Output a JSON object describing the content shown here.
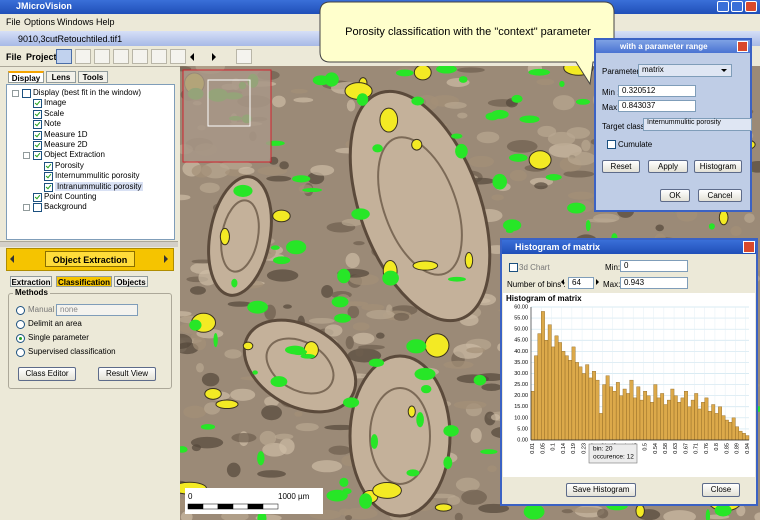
{
  "app": {
    "title": "JMicroVision",
    "menu": [
      "File",
      "Options",
      "Windows",
      "Help"
    ]
  },
  "document": {
    "title": "9010,3cutRetouchtiled.tif1",
    "menu": [
      "File",
      "Project"
    ]
  },
  "left_panel": {
    "tabs": [
      "Display",
      "Lens",
      "Tools"
    ],
    "tree": [
      {
        "label": "Display (best fit in the window)",
        "checked": false,
        "children": [
          {
            "label": "Image",
            "checked": true
          },
          {
            "label": "Scale",
            "checked": true
          },
          {
            "label": "Note",
            "checked": true
          },
          {
            "label": "Measure 1D",
            "checked": true
          },
          {
            "label": "Measure 2D",
            "checked": true
          },
          {
            "label": "Object Extraction",
            "checked": true,
            "children": [
              {
                "label": "Porosity",
                "checked": true
              },
              {
                "label": "Internummulitic porosity",
                "checked": true
              },
              {
                "label": "Intranummulitic porosity",
                "checked": true
              }
            ]
          },
          {
            "label": "Point Counting",
            "checked": true
          },
          {
            "label": "Background",
            "checked": false
          }
        ]
      }
    ],
    "module": "Object Extraction",
    "subtabs": [
      "Extraction",
      "Classification",
      "Objects"
    ],
    "methods": {
      "title": "Methods",
      "manual_combo": "none",
      "options": [
        {
          "label": "Manual :",
          "selected": false
        },
        {
          "label": "Delimit an area",
          "selected": false
        },
        {
          "label": "Single parameter",
          "selected": true
        },
        {
          "label": "Supervised classification",
          "selected": false
        }
      ],
      "buttons": [
        "Class Editor",
        "Result View"
      ]
    }
  },
  "image": {
    "scale_start": "0",
    "scale_end": "1000 µm"
  },
  "callout": "Porosity classification with the \"context\" parameter",
  "range_dialog": {
    "title": "with a parameter range",
    "parameter_label": "Parameter",
    "parameter": "matrix",
    "min_label": "Min :",
    "min": 0.320512,
    "max_label": "Max :",
    "max": 0.843037,
    "target_label": "Target class :",
    "target": "Internummulitic porosity",
    "cumulate": "Cumulate",
    "buttons": [
      "Reset",
      "Apply",
      "Histogram"
    ],
    "ok": "OK",
    "cancel": "Cancel"
  },
  "histogram_window": {
    "title": "Histogram of matrix",
    "chart3d": "3d Chart",
    "min_label": "Min:",
    "min": 0,
    "max_label": "Max:",
    "max": 0.943,
    "bins_label": "Number of bins :",
    "bins": 64,
    "buttons": [
      "Save Histogram",
      "Close"
    ]
  },
  "chart_data": {
    "type": "bar",
    "title": "Histogram of matrix",
    "color": "#dca94a",
    "grid": true,
    "categories": [
      "0.01",
      null,
      null,
      "0.05",
      null,
      null,
      "0.1",
      null,
      null,
      "0.14",
      null,
      null,
      "0.19",
      null,
      null,
      "0.23",
      null,
      null,
      "0.27",
      null,
      null,
      "0.32",
      null,
      null,
      "0.36",
      null,
      null,
      "0.41",
      null,
      null,
      "0.45",
      null,
      null,
      "0.5",
      null,
      null,
      "0.54",
      null,
      null,
      "0.58",
      null,
      null,
      "0.63",
      null,
      null,
      "0.67",
      null,
      null,
      "0.71",
      null,
      null,
      "0.76",
      null,
      null,
      "0.8",
      null,
      null,
      "0.85",
      null,
      null,
      "0.89",
      null,
      null,
      "0.94"
    ],
    "values": [
      22,
      38,
      48,
      58,
      45,
      52,
      42,
      47,
      44,
      40,
      38,
      36,
      42,
      35,
      33,
      30,
      34,
      28,
      31,
      27,
      12,
      25,
      29,
      24,
      22,
      26,
      20,
      23,
      21,
      27,
      19,
      24,
      18,
      22,
      20,
      17,
      25,
      19,
      21,
      16,
      18,
      23,
      20,
      17,
      19,
      22,
      15,
      18,
      21,
      14,
      17,
      19,
      13,
      16,
      12,
      15,
      11,
      9,
      8,
      10,
      6,
      4,
      3,
      2
    ],
    "ylim": [
      0,
      60
    ],
    "yticks": [
      {
        "value": 0,
        "label": "0.00"
      },
      {
        "value": 5,
        "label": "5.00"
      },
      {
        "value": 10,
        "label": "10.00"
      },
      {
        "value": 15,
        "label": "15.00"
      },
      {
        "value": 20,
        "label": "20.00"
      },
      {
        "value": 25,
        "label": "25.00"
      },
      {
        "value": 30,
        "label": "30.00"
      },
      {
        "value": 35,
        "label": "35.00"
      },
      {
        "value": 40,
        "label": "40.00"
      },
      {
        "value": 45,
        "label": "45.00"
      },
      {
        "value": 50,
        "label": "50.00"
      },
      {
        "value": 55,
        "label": "55.00"
      },
      {
        "value": 60,
        "label": "60.00"
      }
    ],
    "tooltip": [
      "bin: 20",
      "occurence: 12"
    ]
  }
}
